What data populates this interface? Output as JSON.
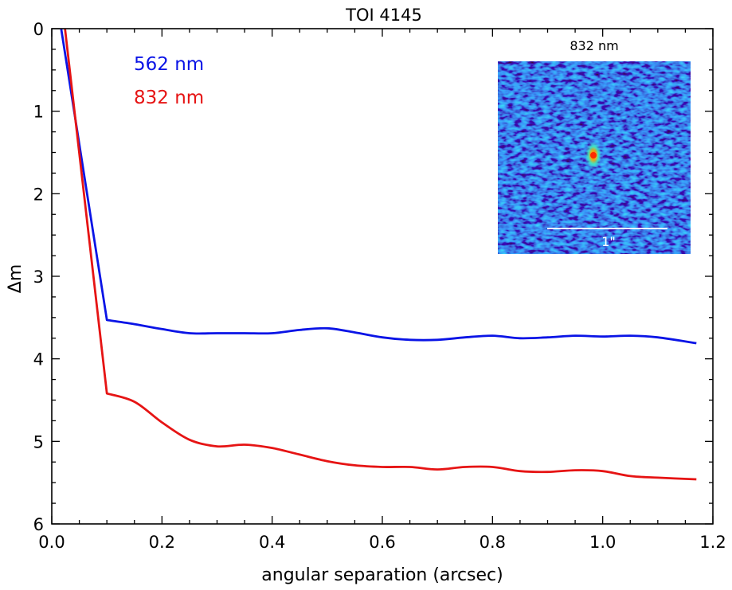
{
  "chart_data": {
    "type": "line",
    "title": "TOI 4145",
    "xlabel": "angular separation (arcsec)",
    "ylabel": "Δm",
    "xlim": [
      0.0,
      1.2
    ],
    "ylim": [
      6,
      0
    ],
    "y_inverted": true,
    "x_major_ticks": [
      0.0,
      0.2,
      0.4,
      0.6,
      0.8,
      1.0,
      1.2
    ],
    "x_tick_labels": [
      "0.0",
      "0.2",
      "0.4",
      "0.6",
      "0.8",
      "1.0",
      "1.2"
    ],
    "y_major_ticks": [
      0,
      1,
      2,
      3,
      4,
      5,
      6
    ],
    "y_tick_labels": [
      "0",
      "1",
      "2",
      "3",
      "4",
      "5",
      "6"
    ],
    "grid": false,
    "legend_placement": "top-left",
    "series": [
      {
        "name": "562 nm",
        "color": "#0a14e6",
        "x": [
          0.017,
          0.1,
          0.15,
          0.2,
          0.25,
          0.3,
          0.35,
          0.4,
          0.45,
          0.5,
          0.55,
          0.6,
          0.65,
          0.7,
          0.75,
          0.8,
          0.85,
          0.9,
          0.95,
          1.0,
          1.05,
          1.1,
          1.17
        ],
        "y": [
          0.0,
          3.53,
          3.58,
          3.64,
          3.69,
          3.69,
          3.69,
          3.69,
          3.65,
          3.63,
          3.68,
          3.74,
          3.77,
          3.77,
          3.74,
          3.72,
          3.75,
          3.74,
          3.72,
          3.73,
          3.72,
          3.74,
          3.81
        ]
      },
      {
        "name": "832 nm",
        "color": "#e61414",
        "x": [
          0.024,
          0.1,
          0.15,
          0.2,
          0.25,
          0.3,
          0.35,
          0.4,
          0.45,
          0.5,
          0.55,
          0.6,
          0.65,
          0.7,
          0.75,
          0.8,
          0.85,
          0.9,
          0.95,
          1.0,
          1.05,
          1.1,
          1.17
        ],
        "y": [
          0.0,
          4.42,
          4.52,
          4.77,
          4.98,
          5.06,
          5.04,
          5.08,
          5.16,
          5.24,
          5.29,
          5.31,
          5.31,
          5.34,
          5.31,
          5.31,
          5.36,
          5.37,
          5.35,
          5.36,
          5.42,
          5.44,
          5.46
        ]
      }
    ],
    "inset": {
      "title": "832 nm",
      "scale_label": "1\"",
      "scale_length_arcsec": 1.0,
      "colormap": "jet",
      "background_color": "#1a4fd6",
      "source_color": "#ff2a00"
    }
  }
}
